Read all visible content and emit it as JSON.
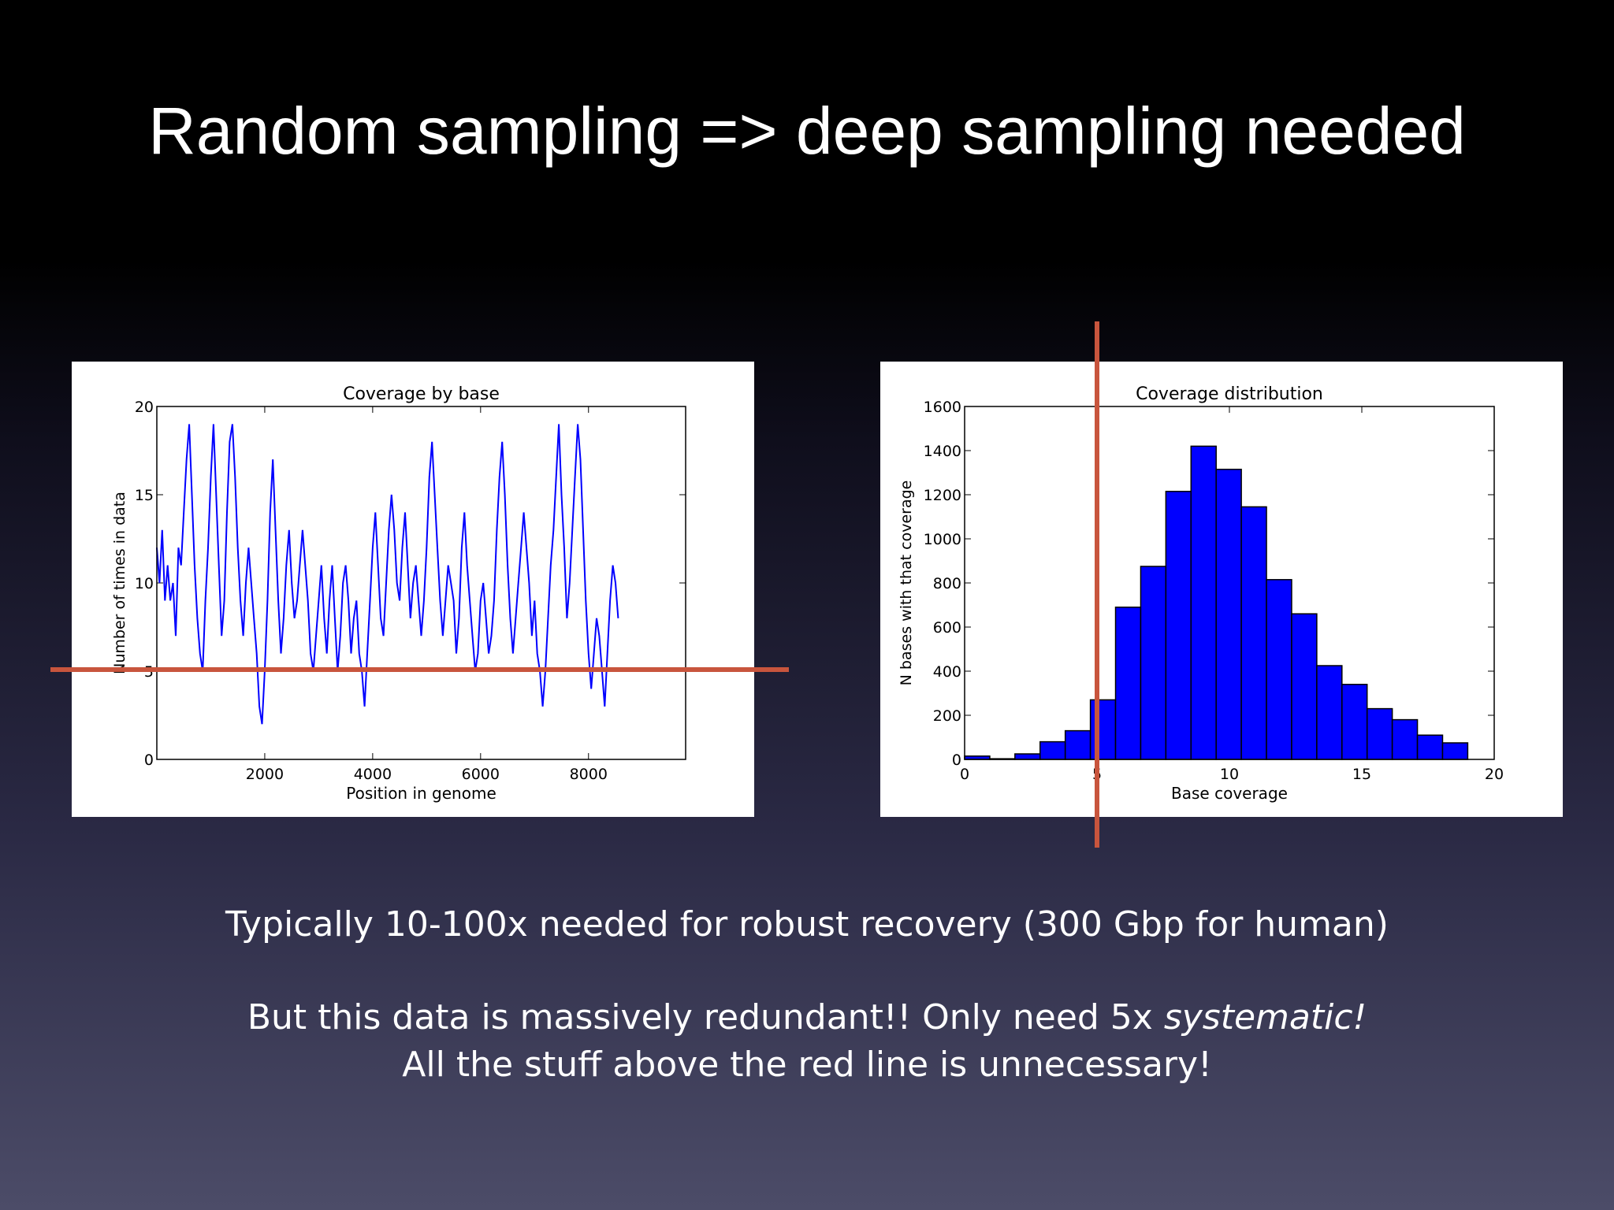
{
  "slide": {
    "title": "Random sampling => deep sampling needed",
    "caption_1": "Typically 10-100x needed for robust recovery (300 Gbp for human)",
    "caption_2_main": "But this data is massively redundant!! Only need 5x ",
    "caption_2_emph": "systematic!",
    "caption_3": "All the stuff above the red line is unnecessary!"
  },
  "colors": {
    "data_blue": "#0000ff",
    "red_line": "#c8553d",
    "background_top": "#000000",
    "background_bottom": "#4c4c68"
  },
  "chart_data": [
    {
      "type": "line",
      "title": "Coverage by base",
      "xlabel": "Position in genome",
      "ylabel": "Number of times in data",
      "xlim": [
        0,
        9800
      ],
      "ylim": [
        0,
        20
      ],
      "xticks": [
        2000,
        4000,
        6000,
        8000
      ],
      "yticks": [
        0,
        5,
        10,
        15,
        20
      ],
      "x_step": 50,
      "reference_line_y": 5,
      "series": [
        {
          "color": "#0000ff",
          "values": [
            12,
            10,
            13,
            9,
            11,
            9,
            10,
            7,
            12,
            11,
            14,
            17,
            19,
            15,
            11,
            8,
            6,
            5,
            9,
            12,
            16,
            19,
            15,
            11,
            7,
            9,
            14,
            18,
            19,
            16,
            12,
            9,
            7,
            10,
            12,
            10,
            8,
            6,
            3,
            2,
            5,
            9,
            14,
            17,
            13,
            9,
            6,
            8,
            11,
            13,
            10,
            8,
            9,
            11,
            13,
            11,
            9,
            6,
            5,
            7,
            9,
            11,
            8,
            6,
            9,
            11,
            8,
            5,
            7,
            10,
            11,
            9,
            6,
            8,
            9,
            6,
            5,
            3,
            6,
            9,
            12,
            14,
            11,
            8,
            7,
            10,
            13,
            15,
            13,
            10,
            9,
            12,
            14,
            11,
            8,
            10,
            11,
            9,
            7,
            9,
            12,
            16,
            18,
            15,
            12,
            9,
            7,
            9,
            11,
            10,
            9,
            6,
            8,
            12,
            14,
            11,
            9,
            7,
            5,
            6,
            9,
            10,
            8,
            6,
            7,
            9,
            13,
            16,
            18,
            15,
            11,
            8,
            6,
            8,
            10,
            12,
            14,
            12,
            10,
            7,
            9,
            6,
            5,
            3,
            5,
            8,
            11,
            13,
            16,
            19,
            15,
            12,
            8,
            10,
            13,
            16,
            19,
            17,
            13,
            9,
            6,
            4,
            6,
            8,
            7,
            5,
            3,
            6,
            9,
            11,
            10,
            8
          ]
        }
      ]
    },
    {
      "type": "bar",
      "title": "Coverage distribution",
      "xlabel": "Base coverage",
      "ylabel": "N bases with that coverage",
      "xlim": [
        0,
        20
      ],
      "ylim": [
        0,
        1600
      ],
      "xticks": [
        0,
        5,
        10,
        15,
        20
      ],
      "yticks": [
        0,
        200,
        400,
        600,
        800,
        1000,
        1200,
        1400,
        1600
      ],
      "bin_edges": [
        0,
        0.95,
        1.9,
        2.85,
        3.8,
        4.75,
        5.7,
        6.65,
        7.6,
        8.55,
        9.5,
        10.45,
        11.4,
        12.35,
        13.3,
        14.25,
        15.2,
        16.15,
        17.1,
        18.05,
        19.0
      ],
      "values": [
        15,
        3,
        25,
        80,
        130,
        270,
        690,
        875,
        1215,
        1420,
        1315,
        1145,
        815,
        660,
        425,
        340,
        230,
        180,
        110,
        75
      ],
      "reference_line_x": 5
    }
  ]
}
